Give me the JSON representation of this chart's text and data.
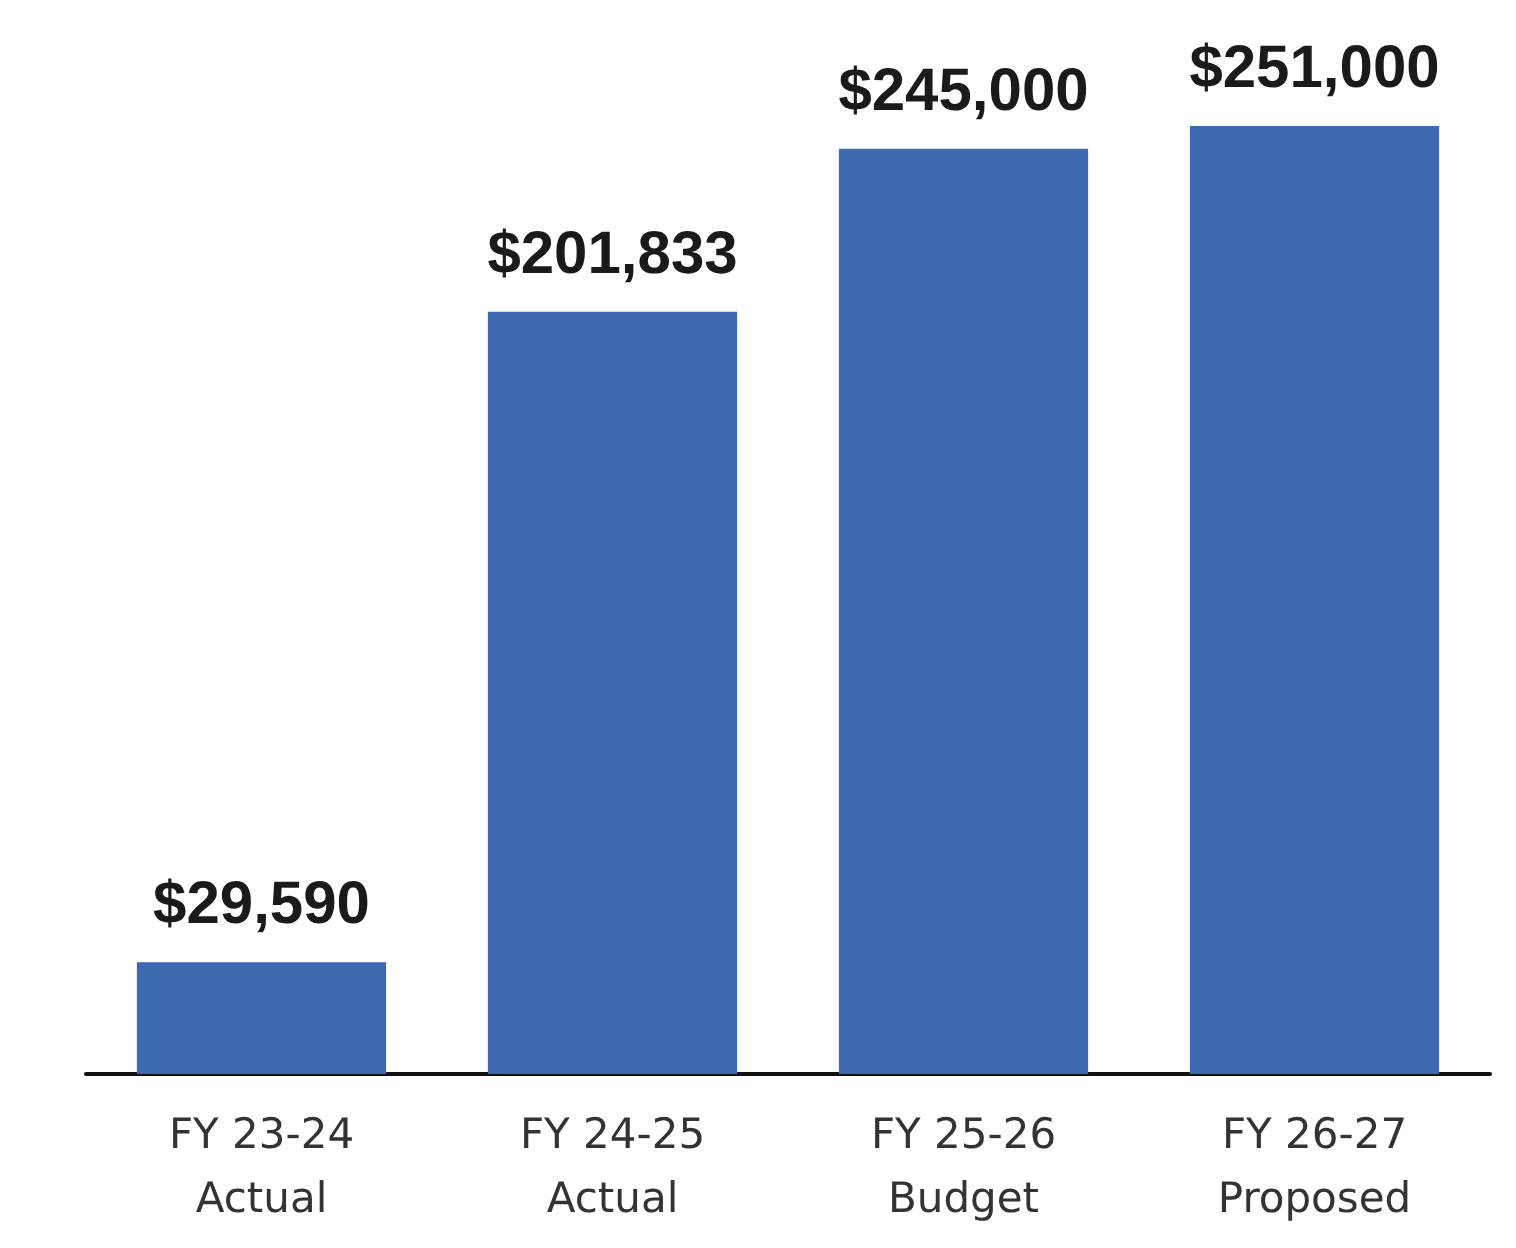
{
  "chart_data": {
    "type": "bar",
    "categories": [
      "FY 23-24\nActual",
      "FY 24-25\nActual",
      "FY 25-26\nBudget",
      "FY 26-27\nProposed"
    ],
    "values": [
      29590,
      201833,
      245000,
      251000
    ],
    "value_labels": [
      "$29,590",
      "$201,833",
      "$245,000",
      "$251,000"
    ],
    "color": "#3d69b0"
  }
}
